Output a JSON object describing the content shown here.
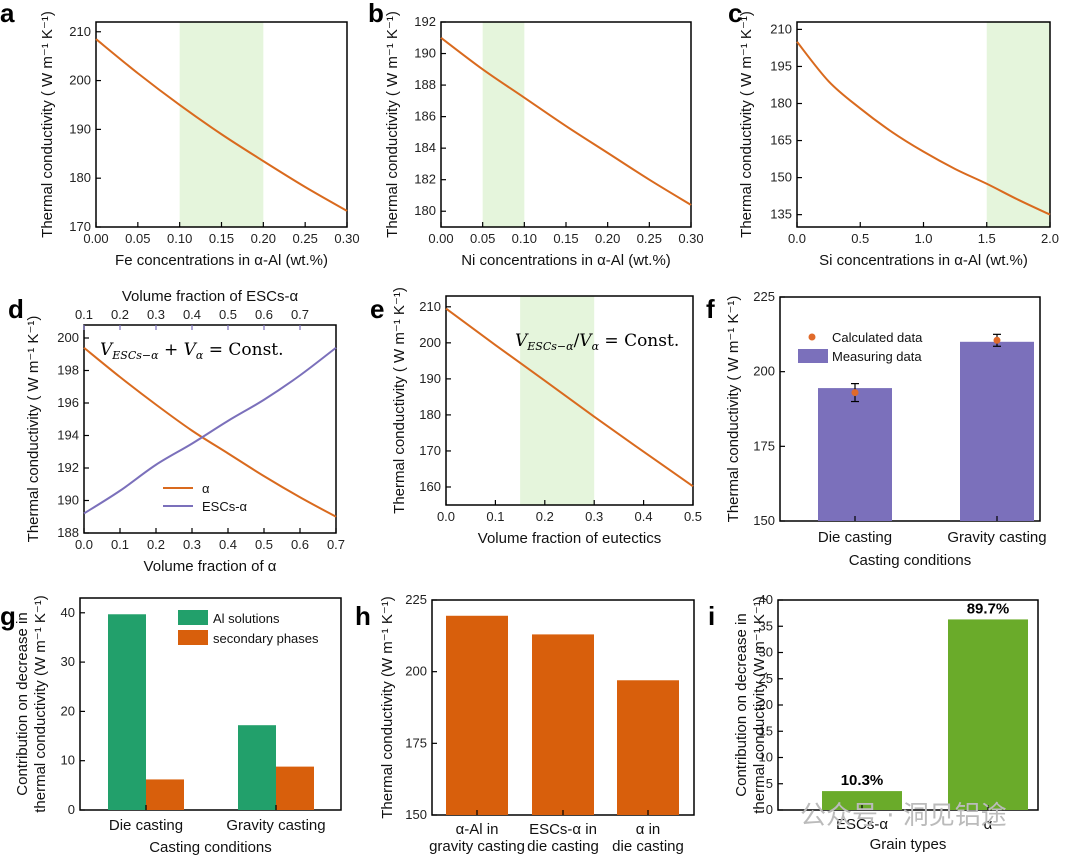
{
  "colors": {
    "orange": "#d96a1e",
    "purple": "#7b70bb",
    "green": "#22a06b",
    "lime": "#6aab2a",
    "shade": "#e5f5dc",
    "dot": "#e06a2a"
  },
  "watermark": "公众号 · 洞见铝途",
  "panels": {
    "a": "a",
    "b": "b",
    "c": "c",
    "d": "d",
    "e": "e",
    "f": "f",
    "g": "g",
    "h": "h",
    "i": "i"
  },
  "chart_data": [
    {
      "id": "a",
      "type": "line",
      "xlabel": "Fe concentrations in α-Al (wt.%)",
      "ylabel": "Thermal conductivity ( W m⁻¹ K⁻¹)",
      "xlim": [
        0,
        0.3
      ],
      "ylim": [
        170,
        212
      ],
      "xticks": [
        "0.00",
        "0.05",
        "0.10",
        "0.15",
        "0.20",
        "0.25",
        "0.30"
      ],
      "yticks": [
        "170",
        "180",
        "190",
        "200",
        "210"
      ],
      "shade": [
        0.1,
        0.2
      ],
      "x": [
        0,
        0.05,
        0.1,
        0.15,
        0.2,
        0.25,
        0.3
      ],
      "y": [
        208.5,
        201.5,
        195.0,
        189.0,
        183.5,
        178.2,
        173.3
      ]
    },
    {
      "id": "b",
      "type": "line",
      "xlabel": "Ni concentrations in α-Al (wt.%)",
      "ylabel": "Thermal conductivity ( W m⁻¹ K⁻¹)",
      "xlim": [
        0,
        0.3
      ],
      "ylim": [
        179,
        192
      ],
      "xticks": [
        "0.00",
        "0.05",
        "0.10",
        "0.15",
        "0.20",
        "0.25",
        "0.30"
      ],
      "yticks": [
        "180",
        "182",
        "184",
        "186",
        "188",
        "190",
        "192"
      ],
      "shade": [
        0.05,
        0.1
      ],
      "x": [
        0,
        0.05,
        0.1,
        0.15,
        0.2,
        0.25,
        0.3
      ],
      "y": [
        191.0,
        189.0,
        187.2,
        185.4,
        183.7,
        182.0,
        180.4
      ]
    },
    {
      "id": "c",
      "type": "line",
      "xlabel": "Si concentrations in α-Al (wt.%)",
      "ylabel": "Thermal conductivity ( W m⁻¹ K⁻¹)",
      "xlim": [
        0,
        2
      ],
      "ylim": [
        130,
        213
      ],
      "xticks": [
        "0.0",
        "0.5",
        "1.0",
        "1.5",
        "2.0"
      ],
      "yticks": [
        "135",
        "150",
        "165",
        "180",
        "195",
        "210"
      ],
      "shade": [
        1.5,
        2.0
      ],
      "x": [
        0,
        0.25,
        0.5,
        0.75,
        1.0,
        1.25,
        1.5,
        1.75,
        2.0
      ],
      "y": [
        205,
        189,
        178,
        168.5,
        160.5,
        153.5,
        147.5,
        141,
        135
      ]
    },
    {
      "id": "d",
      "type": "line",
      "xlabel": "Volume fraction of α",
      "toplabel": "Volume fraction of ESCs-α",
      "ylabel": "Thermal conductivity ( W m⁻¹ K⁻¹)",
      "xlim": [
        0,
        0.7
      ],
      "ylim": [
        188,
        200.8
      ],
      "xticks": [
        "0.0",
        "0.1",
        "0.2",
        "0.3",
        "0.4",
        "0.5",
        "0.6",
        "0.7"
      ],
      "topticks": [
        "0.1",
        "0.2",
        "0.3",
        "0.4",
        "0.5",
        "0.6",
        "0.7"
      ],
      "yticks": [
        "188",
        "190",
        "192",
        "194",
        "196",
        "198",
        "200"
      ],
      "equation": "V_ESCs−α + V_α = Const.",
      "series": [
        {
          "name": "α",
          "x": [
            0,
            0.1,
            0.2,
            0.3,
            0.4,
            0.5,
            0.6,
            0.7
          ],
          "y": [
            199.4,
            197.6,
            195.9,
            194.3,
            192.9,
            191.5,
            190.2,
            189.0
          ]
        },
        {
          "name": "ESCs-α",
          "x": [
            0,
            0.1,
            0.2,
            0.3,
            0.4,
            0.5,
            0.6,
            0.7
          ],
          "y": [
            189.2,
            190.6,
            192.2,
            193.5,
            194.9,
            196.2,
            197.7,
            199.4
          ]
        }
      ]
    },
    {
      "id": "e",
      "type": "line",
      "xlabel": "Volume fraction of eutectics",
      "ylabel": "Thermal conductivity ( W m⁻¹ K⁻¹)",
      "xlim": [
        0,
        0.5
      ],
      "ylim": [
        155,
        213
      ],
      "xticks": [
        "0.0",
        "0.1",
        "0.2",
        "0.3",
        "0.4",
        "0.5"
      ],
      "yticks": [
        "160",
        "170",
        "180",
        "190",
        "200",
        "210"
      ],
      "shade": [
        0.15,
        0.3
      ],
      "equation": "V_ESCs−α / V_α = Const.",
      "x": [
        0,
        0.1,
        0.2,
        0.3,
        0.4,
        0.5
      ],
      "y": [
        209.5,
        199.4,
        189.5,
        179.5,
        169.8,
        160.2
      ]
    },
    {
      "id": "f",
      "type": "bar",
      "xlabel": "Casting conditions",
      "ylabel": "Thermal conductivity ( W m⁻¹ K⁻¹)",
      "ylim": [
        150,
        225
      ],
      "yticks": [
        "150",
        "175",
        "200",
        "225"
      ],
      "categories": [
        "Die casting",
        "Gravity casting"
      ],
      "legend": [
        "Calculated data",
        "Measuring data"
      ],
      "measured": [
        194.5,
        210
      ],
      "calculated": [
        193,
        210.5
      ],
      "error": [
        3,
        2
      ]
    },
    {
      "id": "g",
      "type": "bar",
      "xlabel": "Casting conditions",
      "ylabel1": "Contribution on decrease in",
      "ylabel2": "thermal conductivity (W m⁻¹ K⁻¹)",
      "ylim": [
        0,
        43
      ],
      "yticks": [
        "0",
        "10",
        "20",
        "30",
        "40"
      ],
      "categories": [
        "Die casting",
        "Gravity casting"
      ],
      "series": [
        {
          "name": "Al solutions",
          "values": [
            39.7,
            17.2
          ]
        },
        {
          "name": "secondary phases",
          "values": [
            6.2,
            8.8
          ]
        }
      ]
    },
    {
      "id": "h",
      "type": "bar",
      "ylabel": "Thermal conductivity (W m⁻¹ K⁻¹)",
      "ylim": [
        150,
        225
      ],
      "yticks": [
        "150",
        "175",
        "200",
        "225"
      ],
      "categories": [
        [
          "α-Al in",
          "gravity casting"
        ],
        [
          "ESCs-α in",
          "die casting"
        ],
        [
          "α in",
          "die casting"
        ]
      ],
      "values": [
        219.5,
        213,
        197
      ]
    },
    {
      "id": "i",
      "type": "bar",
      "xlabel": "Grain types",
      "ylabel1": "Contribution on decrease in",
      "ylabel2": "thermal conductivity (W m⁻¹ K⁻¹)",
      "ylim": [
        0,
        40
      ],
      "yticks": [
        "0",
        "5",
        "10",
        "15",
        "20",
        "25",
        "30",
        "35",
        "40"
      ],
      "categories": [
        "ESCs-α",
        "α"
      ],
      "values": [
        3.6,
        36.3
      ],
      "labels": [
        "10.3%",
        "89.7%"
      ]
    }
  ]
}
